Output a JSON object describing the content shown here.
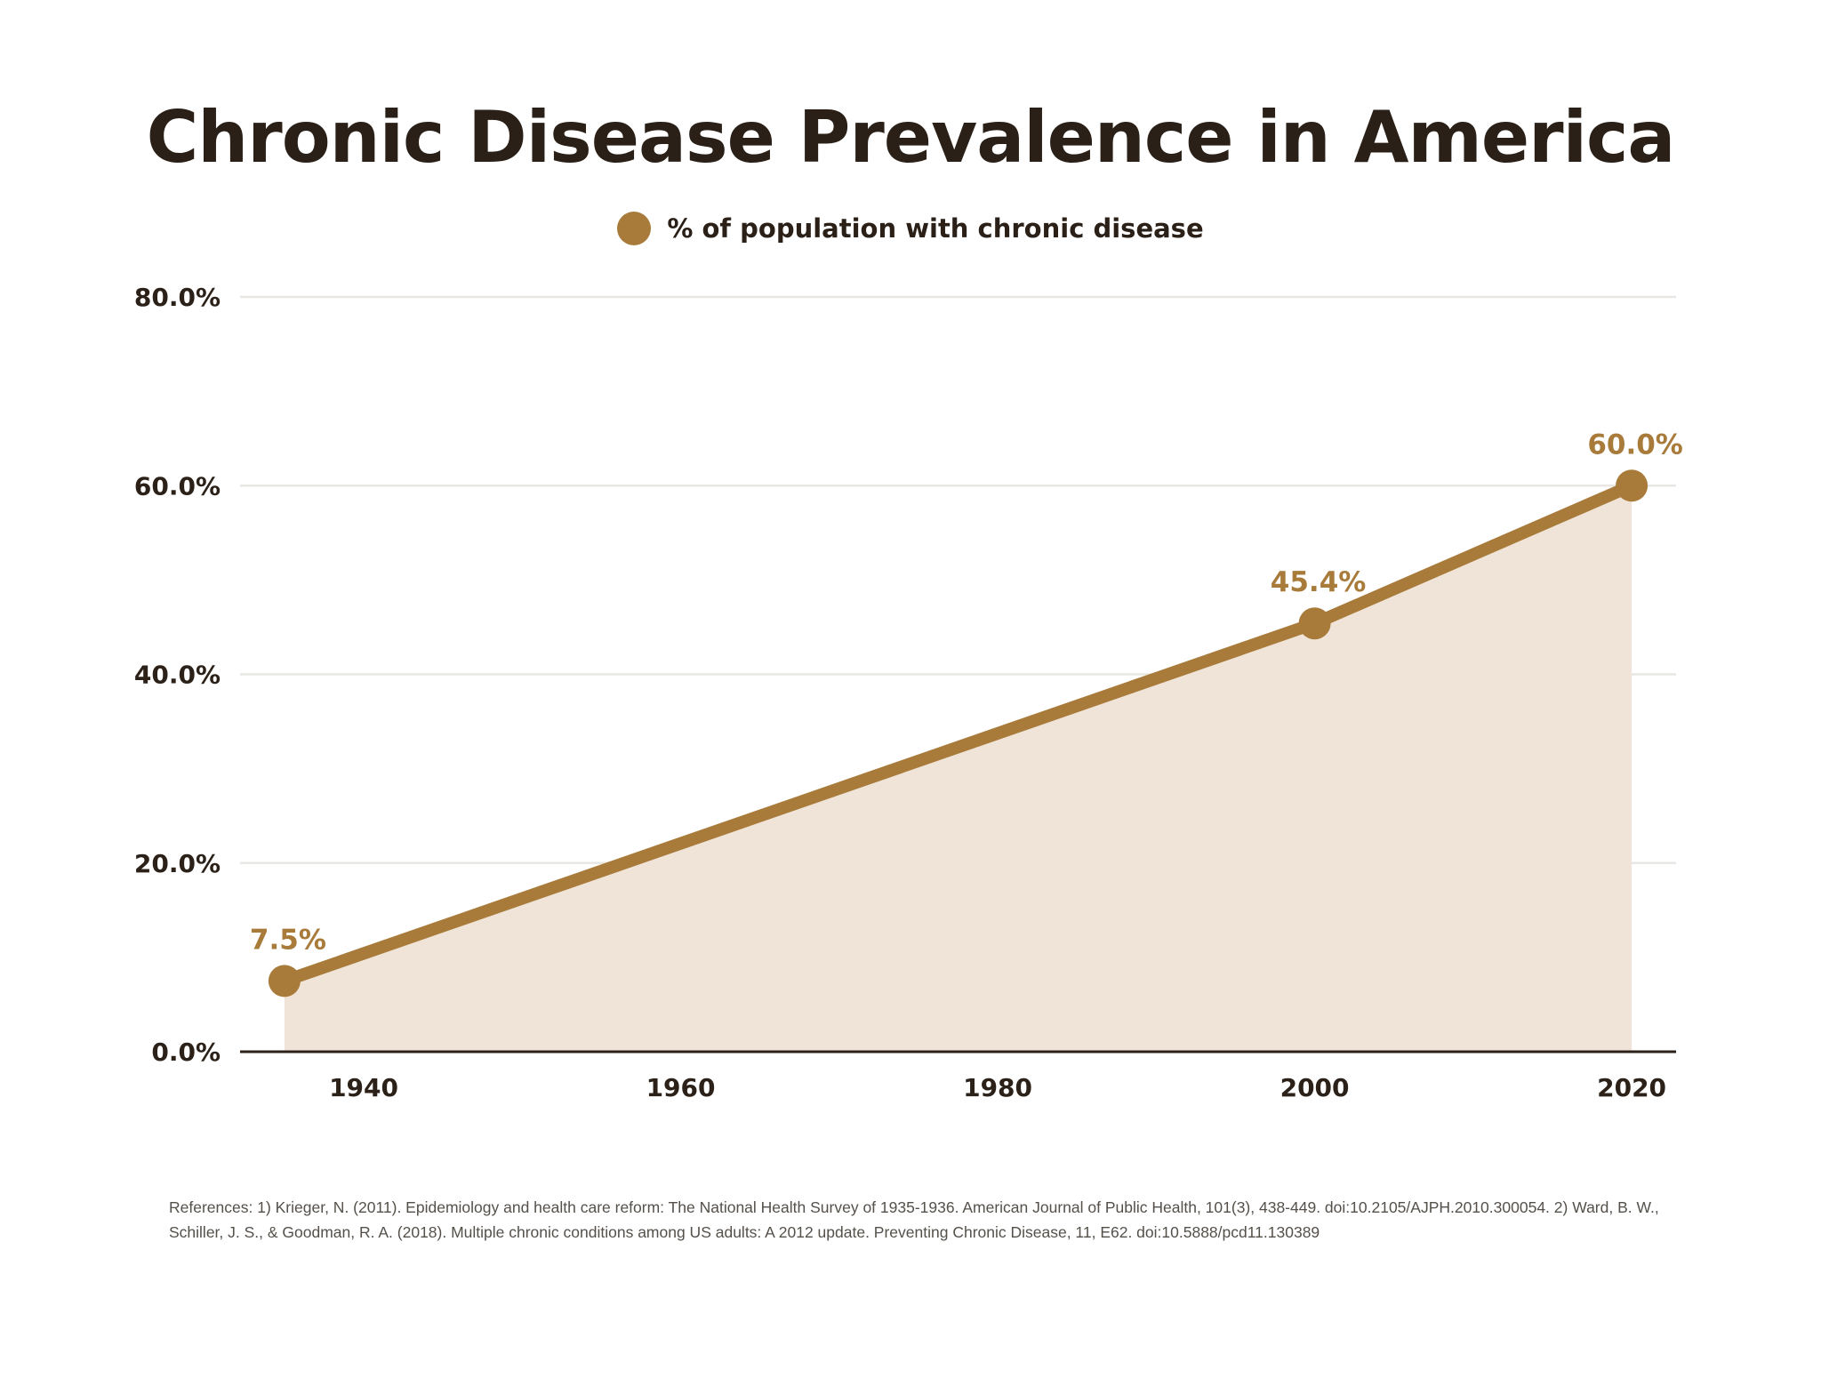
{
  "chart_data": {
    "type": "area",
    "title": "Chronic Disease Prevalence in America",
    "legend": {
      "label": "% of population with chronic disease",
      "position": "top-center"
    },
    "series": [
      {
        "name": "% of population with chronic disease",
        "x": [
          1935,
          2000,
          2020
        ],
        "values": [
          7.5,
          45.4,
          60.0
        ],
        "data_labels": [
          "7.5%",
          "45.4%",
          "60.0%"
        ]
      }
    ],
    "x_ticks": [
      "1940",
      "1960",
      "1980",
      "2000",
      "2020"
    ],
    "x_tick_values": [
      1940,
      1960,
      1980,
      2000,
      2020
    ],
    "y_ticks": [
      "0.0%",
      "20.0%",
      "40.0%",
      "60.0%",
      "80.0%"
    ],
    "y_tick_values": [
      0,
      20,
      40,
      60,
      80
    ],
    "xlim": [
      1932.2,
      2022.8
    ],
    "ylim": [
      0,
      80
    ],
    "xlabel": "",
    "ylabel": "",
    "grid": true,
    "colors": {
      "line": "#a87b3b",
      "area": "#efe4d7",
      "grid": "#e9e7e4",
      "axis": "#2b2118",
      "label": "#a87b3b",
      "text": "#2b2118"
    }
  },
  "references": "References: 1) Krieger, N. (2011). Epidemiology and health care reform: The National Health Survey of 1935-1936. American Journal of Public Health, 101(3), 438-449. doi:10.2105/AJPH.2010.300054. 2) Ward, B. W., Schiller, J. S., & Goodman, R. A. (2018). Multiple chronic conditions among US adults: A 2012 update. Preventing Chronic Disease, 11, E62. doi:10.5888/pcd11.130389"
}
